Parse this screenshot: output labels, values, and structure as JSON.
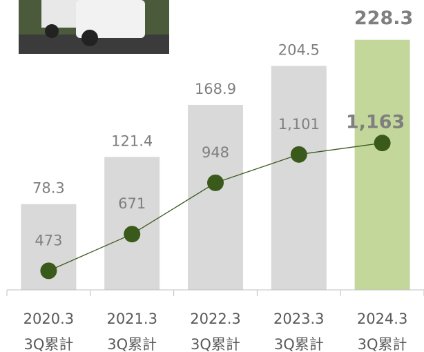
{
  "chart_data": {
    "type": "bar_line",
    "categories": [
      [
        "2020.3",
        "3Q累計"
      ],
      [
        "2021.3",
        "3Q累計"
      ],
      [
        "2022.3",
        "3Q累計"
      ],
      [
        "2023.3",
        "3Q累計"
      ],
      [
        "2024.3",
        "3Q累計"
      ]
    ],
    "series": [
      {
        "type": "bar",
        "colors": [
          "#d9d9d9",
          "#d9d9d9",
          "#d9d9d9",
          "#d9d9d9",
          "#c4d79b"
        ],
        "values": [
          78.3,
          121.4,
          168.9,
          204.5,
          228.3
        ]
      },
      {
        "type": "line",
        "axis": "y2",
        "color": "#3a5a1c",
        "values": [
          473,
          671,
          948,
          1101,
          1163
        ],
        "value_labels": [
          "473",
          "671",
          "948",
          "1,101",
          "1,163"
        ]
      }
    ],
    "ylim": [
      0,
      230
    ],
    "y2lim": [
      370,
      1730
    ]
  }
}
